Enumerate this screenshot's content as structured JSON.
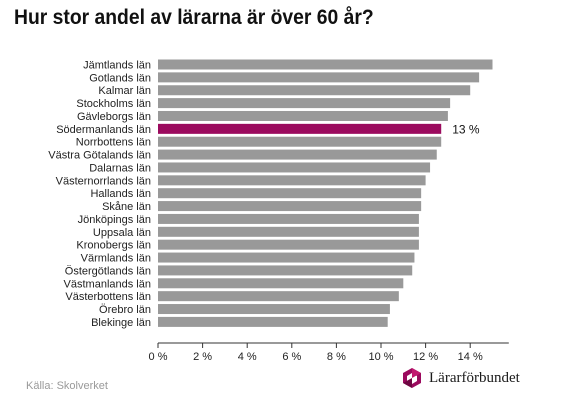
{
  "title": "Hur stor andel av lärarna är över 60 år?",
  "source": "Källa: Skolverket",
  "logo_text": "Lärarförbundet",
  "colors": {
    "bar": "#999999",
    "highlight": "#9b0a5e",
    "axis": "#333333"
  },
  "chart_data": {
    "type": "bar",
    "orientation": "horizontal",
    "title": "Hur stor andel av lärarna är över 60 år?",
    "xlabel": "",
    "ylabel": "",
    "xlim": [
      0,
      16
    ],
    "ticks": [
      0,
      2,
      4,
      6,
      8,
      10,
      12,
      14
    ],
    "tick_labels": [
      "0 %",
      "2 %",
      "4 %",
      "6 %",
      "8 %",
      "10 %",
      "12 %",
      "14 %"
    ],
    "grid": false,
    "categories": [
      "Jämtlands län",
      "Gotlands län",
      "Kalmar län",
      "Stockholms län",
      "Gävleborgs län",
      "Södermanlands län",
      "Norrbottens län",
      "Västra Götalands län",
      "Dalarnas län",
      "Västernorrlands län",
      "Hallands län",
      "Skåne län",
      "Jönköpings län",
      "Uppsala län",
      "Kronobergs län",
      "Värmlands län",
      "Östergötlands län",
      "Västmanlands län",
      "Västerbottens län",
      "Örebro län",
      "Blekinge län"
    ],
    "values": [
      15.0,
      14.4,
      14.0,
      13.1,
      13.0,
      12.7,
      12.7,
      12.5,
      12.2,
      12.0,
      11.8,
      11.8,
      11.7,
      11.7,
      11.7,
      11.5,
      11.4,
      11.0,
      10.8,
      10.4,
      10.3
    ],
    "highlight_index": 5,
    "annotation": {
      "index": 5,
      "text": "13 %"
    }
  }
}
